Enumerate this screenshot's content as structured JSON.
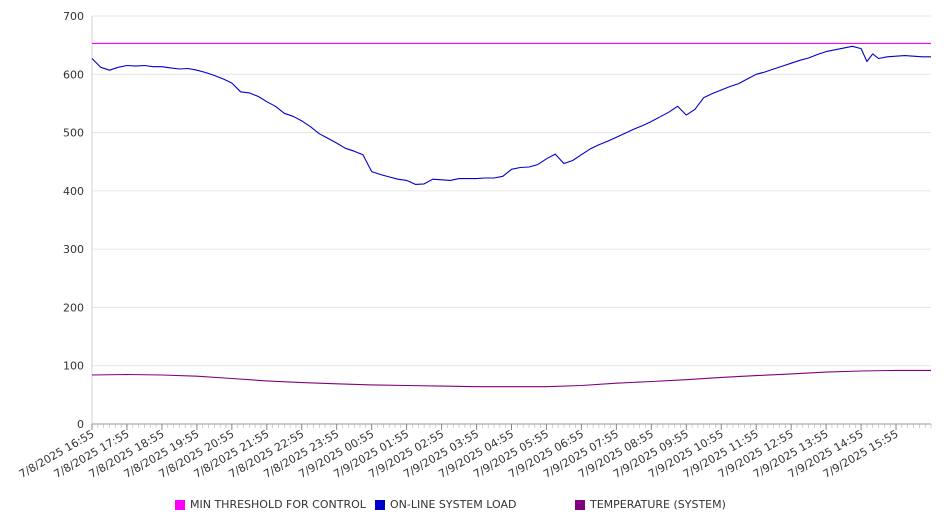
{
  "chart_data": {
    "type": "line",
    "title": "",
    "xlabel": "",
    "ylabel": "",
    "ylim": [
      0,
      700
    ],
    "yticks": [
      0,
      100,
      200,
      300,
      400,
      500,
      600,
      700
    ],
    "grid": true,
    "legend_position": "bottom",
    "x_tick_labels": [
      "7/8/2025 16:55",
      "7/8/2025 17:55",
      "7/8/2025 18:55",
      "7/8/2025 19:55",
      "7/8/2025 20:55",
      "7/8/2025 21:55",
      "7/8/2025 22:55",
      "7/8/2025 23:55",
      "7/9/2025 00:55",
      "7/9/2025 01:55",
      "7/9/2025 02:55",
      "7/9/2025 03:55",
      "7/9/2025 04:55",
      "7/9/2025 05:55",
      "7/9/2025 06:55",
      "7/9/2025 07:55",
      "7/9/2025 08:55",
      "7/9/2025 09:55",
      "7/9/2025 10:55",
      "7/9/2025 11:55",
      "7/9/2025 12:55",
      "7/9/2025 13:55",
      "7/9/2025 14:55",
      "7/9/2025 15:55"
    ],
    "series": [
      {
        "name": "MIN THRESHOLD FOR CONTROL",
        "color": "#ff00ff",
        "points": [
          [
            "7/8/2025 16:55",
            653
          ],
          [
            "7/9/2025 16:55",
            653
          ]
        ]
      },
      {
        "name": "ON-LINE SYSTEM LOAD",
        "color": "#0000cc",
        "points": [
          [
            "7/8/2025 16:55",
            627
          ],
          [
            "7/8/2025 17:10",
            612
          ],
          [
            "7/8/2025 17:25",
            607
          ],
          [
            "7/8/2025 17:40",
            612
          ],
          [
            "7/8/2025 17:55",
            615
          ],
          [
            "7/8/2025 18:10",
            614
          ],
          [
            "7/8/2025 18:25",
            615
          ],
          [
            "7/8/2025 18:40",
            613
          ],
          [
            "7/8/2025 18:55",
            613
          ],
          [
            "7/8/2025 19:10",
            611
          ],
          [
            "7/8/2025 19:25",
            609
          ],
          [
            "7/8/2025 19:40",
            610
          ],
          [
            "7/8/2025 19:55",
            607
          ],
          [
            "7/8/2025 20:10",
            603
          ],
          [
            "7/8/2025 20:25",
            598
          ],
          [
            "7/8/2025 20:40",
            592
          ],
          [
            "7/8/2025 20:55",
            585
          ],
          [
            "7/8/2025 21:10",
            570
          ],
          [
            "7/8/2025 21:25",
            568
          ],
          [
            "7/8/2025 21:40",
            562
          ],
          [
            "7/8/2025 21:55",
            553
          ],
          [
            "7/8/2025 22:10",
            545
          ],
          [
            "7/8/2025 22:25",
            533
          ],
          [
            "7/8/2025 22:40",
            528
          ],
          [
            "7/8/2025 22:55",
            520
          ],
          [
            "7/8/2025 23:10",
            510
          ],
          [
            "7/8/2025 23:25",
            498
          ],
          [
            "7/8/2025 23:40",
            490
          ],
          [
            "7/8/2025 23:55",
            482
          ],
          [
            "7/9/2025 00:10",
            473
          ],
          [
            "7/9/2025 00:25",
            468
          ],
          [
            "7/9/2025 00:40",
            462
          ],
          [
            "7/9/2025 00:55",
            433
          ],
          [
            "7/9/2025 01:10",
            428
          ],
          [
            "7/9/2025 01:25",
            424
          ],
          [
            "7/9/2025 01:40",
            420
          ],
          [
            "7/9/2025 01:55",
            418
          ],
          [
            "7/9/2025 02:10",
            411
          ],
          [
            "7/9/2025 02:25",
            412
          ],
          [
            "7/9/2025 02:40",
            420
          ],
          [
            "7/9/2025 02:55",
            419
          ],
          [
            "7/9/2025 03:10",
            418
          ],
          [
            "7/9/2025 03:25",
            421
          ],
          [
            "7/9/2025 03:40",
            421
          ],
          [
            "7/9/2025 03:55",
            421
          ],
          [
            "7/9/2025 04:10",
            422
          ],
          [
            "7/9/2025 04:25",
            422
          ],
          [
            "7/9/2025 04:40",
            425
          ],
          [
            "7/9/2025 04:55",
            437
          ],
          [
            "7/9/2025 05:10",
            440
          ],
          [
            "7/9/2025 05:25",
            441
          ],
          [
            "7/9/2025 05:40",
            445
          ],
          [
            "7/9/2025 05:55",
            455
          ],
          [
            "7/9/2025 06:10",
            463
          ],
          [
            "7/9/2025 06:25",
            447
          ],
          [
            "7/9/2025 06:40",
            452
          ],
          [
            "7/9/2025 06:55",
            462
          ],
          [
            "7/9/2025 07:10",
            472
          ],
          [
            "7/9/2025 07:25",
            479
          ],
          [
            "7/9/2025 07:40",
            485
          ],
          [
            "7/9/2025 07:55",
            492
          ],
          [
            "7/9/2025 08:10",
            499
          ],
          [
            "7/9/2025 08:25",
            506
          ],
          [
            "7/9/2025 08:40",
            512
          ],
          [
            "7/9/2025 08:55",
            519
          ],
          [
            "7/9/2025 09:10",
            527
          ],
          [
            "7/9/2025 09:25",
            535
          ],
          [
            "7/9/2025 09:40",
            545
          ],
          [
            "7/9/2025 09:55",
            530
          ],
          [
            "7/9/2025 10:10",
            540
          ],
          [
            "7/9/2025 10:25",
            560
          ],
          [
            "7/9/2025 10:40",
            567
          ],
          [
            "7/9/2025 10:55",
            573
          ],
          [
            "7/9/2025 11:10",
            579
          ],
          [
            "7/9/2025 11:25",
            584
          ],
          [
            "7/9/2025 11:40",
            592
          ],
          [
            "7/9/2025 11:55",
            600
          ],
          [
            "7/9/2025 12:10",
            604
          ],
          [
            "7/9/2025 12:25",
            609
          ],
          [
            "7/9/2025 12:40",
            614
          ],
          [
            "7/9/2025 12:55",
            619
          ],
          [
            "7/9/2025 13:10",
            624
          ],
          [
            "7/9/2025 13:25",
            628
          ],
          [
            "7/9/2025 13:40",
            634
          ],
          [
            "7/9/2025 13:55",
            639
          ],
          [
            "7/9/2025 14:10",
            642
          ],
          [
            "7/9/2025 14:25",
            645
          ],
          [
            "7/9/2025 14:40",
            648
          ],
          [
            "7/9/2025 14:55",
            644
          ],
          [
            "7/9/2025 15:05",
            622
          ],
          [
            "7/9/2025 15:15",
            635
          ],
          [
            "7/9/2025 15:25",
            627
          ],
          [
            "7/9/2025 15:40",
            630
          ],
          [
            "7/9/2025 15:55",
            631
          ],
          [
            "7/9/2025 16:10",
            632
          ],
          [
            "7/9/2025 16:25",
            631
          ],
          [
            "7/9/2025 16:40",
            630
          ],
          [
            "7/9/2025 16:55",
            630
          ]
        ]
      },
      {
        "name": "TEMPERATURE (SYSTEM)",
        "color": "#800080",
        "points": [
          [
            "7/8/2025 16:55",
            84
          ],
          [
            "7/8/2025 17:55",
            85
          ],
          [
            "7/8/2025 18:55",
            84
          ],
          [
            "7/8/2025 19:55",
            82
          ],
          [
            "7/8/2025 20:55",
            78
          ],
          [
            "7/8/2025 21:55",
            74
          ],
          [
            "7/8/2025 22:55",
            71
          ],
          [
            "7/8/2025 23:55",
            69
          ],
          [
            "7/9/2025 00:55",
            67
          ],
          [
            "7/9/2025 01:55",
            66
          ],
          [
            "7/9/2025 02:55",
            65
          ],
          [
            "7/9/2025 03:55",
            64
          ],
          [
            "7/9/2025 04:55",
            64
          ],
          [
            "7/9/2025 05:55",
            64
          ],
          [
            "7/9/2025 06:55",
            66
          ],
          [
            "7/9/2025 07:55",
            70
          ],
          [
            "7/9/2025 08:55",
            73
          ],
          [
            "7/9/2025 09:55",
            76
          ],
          [
            "7/9/2025 10:55",
            80
          ],
          [
            "7/9/2025 11:55",
            83
          ],
          [
            "7/9/2025 12:55",
            86
          ],
          [
            "7/9/2025 13:55",
            89
          ],
          [
            "7/9/2025 14:55",
            91
          ],
          [
            "7/9/2025 15:55",
            92
          ],
          [
            "7/9/2025 16:55",
            92
          ]
        ]
      }
    ]
  }
}
